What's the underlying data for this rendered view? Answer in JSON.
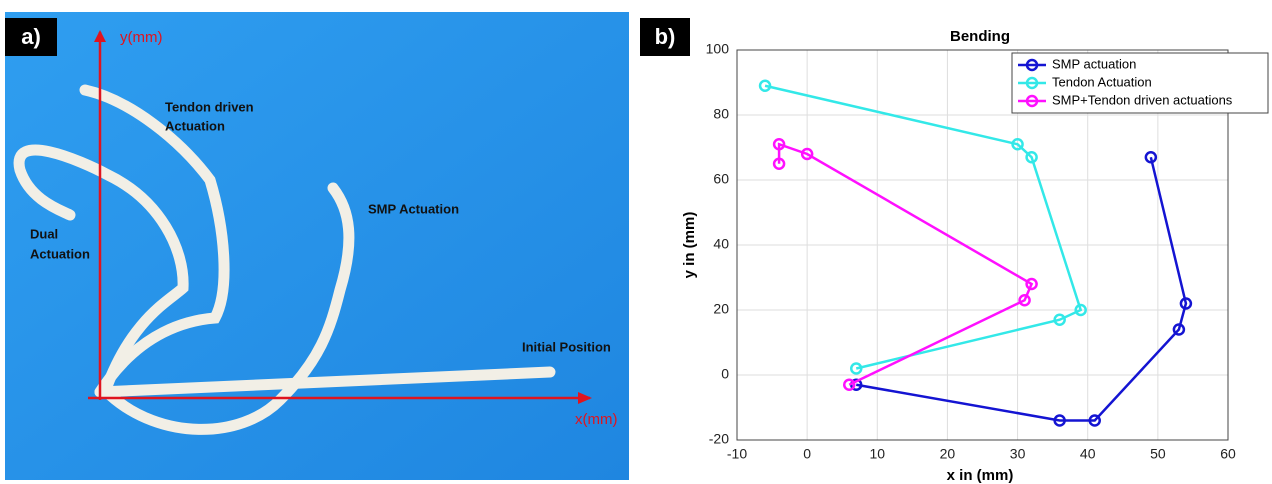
{
  "photo_panel": {
    "label": "a)",
    "y_axis": "y(mm)",
    "x_axis": "x(mm)",
    "tendon": [
      "Tendon driven",
      "Actuation"
    ],
    "smp": "SMP Actuation",
    "dual": [
      "Dual",
      "Actuation"
    ],
    "initial": "Initial Position"
  },
  "chart_panel": {
    "label": "b)"
  },
  "chart_data": {
    "type": "line",
    "title": "Bending",
    "x_label": "x in (mm)",
    "y_label": "y in (mm)",
    "xlim": [
      -10,
      60
    ],
    "xticks": [
      -10,
      0,
      10,
      20,
      30,
      40,
      50,
      60
    ],
    "ylim": [
      -20,
      100
    ],
    "yticks": [
      -20,
      0,
      20,
      40,
      60,
      80,
      100
    ],
    "grid": true,
    "legend": "upper right",
    "series": [
      {
        "name": "SMP actuation",
        "color": "#1414d2",
        "x": [
          49,
          54,
          53,
          41,
          36,
          7
        ],
        "values": [
          67,
          22,
          14,
          -14,
          -14,
          -3
        ]
      },
      {
        "name": "Tendon Actuation",
        "color": "#33e8e8",
        "x": [
          -6,
          30,
          32,
          39,
          36,
          7
        ],
        "values": [
          89,
          71,
          67,
          20,
          17,
          2
        ]
      },
      {
        "name": "SMP+Tendon driven actuations",
        "color": "#ff10ff",
        "x": [
          -4,
          -4,
          0,
          32,
          31,
          6
        ],
        "values": [
          65,
          71,
          68,
          28,
          23,
          -3
        ]
      }
    ]
  }
}
